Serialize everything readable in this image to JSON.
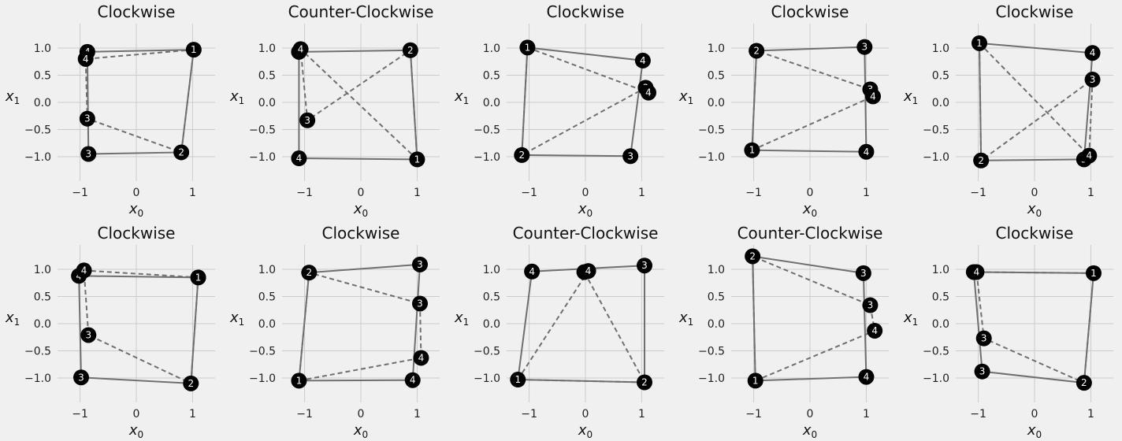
{
  "chart_data": [
    {
      "type": "scatter",
      "title": "Clockwise",
      "xlabel": "x",
      "xlabel_sub": "0",
      "ylabel": "x",
      "ylabel_sub": "1",
      "xlim": [
        -1.4,
        1.4
      ],
      "ylim": [
        -1.45,
        1.45
      ],
      "xticks": [
        "−1",
        "0",
        "1"
      ],
      "yticks": [
        "1.0",
        "0.5",
        "0.0",
        "−0.5",
        "−1.0"
      ],
      "grid": true,
      "solid": [
        [
          1.02,
          0.97
        ],
        [
          0.8,
          -0.92
        ],
        [
          -0.85,
          -0.95
        ],
        [
          -0.87,
          0.93
        ]
      ],
      "dashed": [
        [
          1.02,
          0.97
        ],
        [
          -0.9,
          0.8
        ],
        [
          -0.87,
          -0.3
        ],
        [
          0.8,
          -0.92
        ]
      ],
      "points": [
        {
          "x": 1.02,
          "y": 0.97,
          "label": "1"
        },
        {
          "x": 0.8,
          "y": -0.92,
          "label": "2"
        },
        {
          "x": -0.85,
          "y": -0.95,
          "label": "3"
        },
        {
          "x": -0.87,
          "y": 0.93,
          "label": "4"
        },
        {
          "x": -0.9,
          "y": 0.8,
          "label": "4"
        },
        {
          "x": -0.87,
          "y": -0.3,
          "label": "3"
        }
      ]
    },
    {
      "type": "scatter",
      "title": "Counter-Clockwise",
      "xlabel": "x",
      "xlabel_sub": "0",
      "ylabel": "x",
      "ylabel_sub": "1",
      "xlim": [
        -1.4,
        1.4
      ],
      "ylim": [
        -1.45,
        1.45
      ],
      "xticks": [
        "−1",
        "0",
        "1"
      ],
      "yticks": [
        "1.0",
        "0.5",
        "0.0",
        "−0.5",
        "−1.0"
      ],
      "grid": true,
      "solid": [
        [
          1.0,
          -1.05
        ],
        [
          0.88,
          0.96
        ],
        [
          -1.1,
          0.93
        ],
        [
          -1.1,
          -1.03
        ]
      ],
      "dashed": [
        [
          1.0,
          -1.05
        ],
        [
          -1.07,
          0.98
        ],
        [
          -0.95,
          -0.33
        ],
        [
          0.88,
          0.96
        ]
      ],
      "points": [
        {
          "x": 1.0,
          "y": -1.05,
          "label": "1"
        },
        {
          "x": 0.88,
          "y": 0.96,
          "label": "2"
        },
        {
          "x": -1.1,
          "y": 0.93,
          "label": "3"
        },
        {
          "x": -1.1,
          "y": -1.03,
          "label": "4"
        },
        {
          "x": -1.07,
          "y": 0.98,
          "label": "4"
        },
        {
          "x": -0.95,
          "y": -0.33,
          "label": "3"
        }
      ]
    },
    {
      "type": "scatter",
      "title": "Clockwise",
      "xlabel": "x",
      "xlabel_sub": "0",
      "ylabel": "x",
      "ylabel_sub": "1",
      "xlim": [
        -1.4,
        1.4
      ],
      "ylim": [
        -1.45,
        1.45
      ],
      "xticks": [
        "−1",
        "0",
        "1"
      ],
      "yticks": [
        "1.0",
        "0.5",
        "0.0",
        "−0.5",
        "−1.0"
      ],
      "grid": true,
      "solid": [
        [
          -1.03,
          1.01
        ],
        [
          1.02,
          0.77
        ],
        [
          0.8,
          -0.99
        ],
        [
          -1.13,
          -0.97
        ]
      ],
      "dashed": [
        [
          -1.03,
          1.01
        ],
        [
          1.12,
          0.18
        ],
        [
          1.07,
          0.27
        ],
        [
          -1.13,
          -0.97
        ]
      ],
      "points": [
        {
          "x": -1.03,
          "y": 1.01,
          "label": "1"
        },
        {
          "x": -1.13,
          "y": -0.97,
          "label": "2"
        },
        {
          "x": 0.8,
          "y": -0.99,
          "label": "3"
        },
        {
          "x": 1.02,
          "y": 0.77,
          "label": "4"
        },
        {
          "x": 1.07,
          "y": 0.27,
          "label": "3"
        },
        {
          "x": 1.12,
          "y": 0.18,
          "label": "4"
        }
      ]
    },
    {
      "type": "scatter",
      "title": "Clockwise",
      "xlabel": "x",
      "xlabel_sub": "0",
      "ylabel": "x",
      "ylabel_sub": "1",
      "xlim": [
        -1.4,
        1.4
      ],
      "ylim": [
        -1.45,
        1.45
      ],
      "xticks": [
        "−1",
        "0",
        "1"
      ],
      "yticks": [
        "1.0",
        "0.5",
        "0.0",
        "−0.5",
        "−1.0"
      ],
      "grid": true,
      "solid": [
        [
          -1.03,
          -0.88
        ],
        [
          -0.95,
          0.95
        ],
        [
          0.97,
          1.02
        ],
        [
          1.0,
          -0.91
        ]
      ],
      "dashed": [
        [
          -1.03,
          -0.88
        ],
        [
          1.12,
          0.11
        ],
        [
          1.07,
          0.24
        ],
        [
          -0.95,
          0.95
        ]
      ],
      "points": [
        {
          "x": -1.03,
          "y": -0.88,
          "label": "1"
        },
        {
          "x": -0.95,
          "y": 0.95,
          "label": "2"
        },
        {
          "x": 0.97,
          "y": 1.02,
          "label": "3"
        },
        {
          "x": 1.0,
          "y": -0.91,
          "label": "4"
        },
        {
          "x": 1.07,
          "y": 0.24,
          "label": "3"
        },
        {
          "x": 1.12,
          "y": 0.11,
          "label": "4"
        }
      ]
    },
    {
      "type": "scatter",
      "title": "Clockwise",
      "xlabel": "x",
      "xlabel_sub": "0",
      "ylabel": "x",
      "ylabel_sub": "1",
      "xlim": [
        -1.4,
        1.4
      ],
      "ylim": [
        -1.45,
        1.45
      ],
      "xticks": [
        "−1",
        "0",
        "1"
      ],
      "yticks": [
        "1.0",
        "0.5",
        "0.0",
        "−0.5",
        "−1.0"
      ],
      "grid": true,
      "solid": [
        [
          -0.98,
          1.09
        ],
        [
          1.03,
          0.91
        ],
        [
          0.88,
          -1.05
        ],
        [
          -0.95,
          -1.07
        ]
      ],
      "dashed": [
        [
          -0.98,
          1.09
        ],
        [
          0.97,
          -0.98
        ],
        [
          1.03,
          0.42
        ],
        [
          -0.95,
          -1.07
        ]
      ],
      "points": [
        {
          "x": -0.98,
          "y": 1.09,
          "label": "1"
        },
        {
          "x": -0.95,
          "y": -1.07,
          "label": "2"
        },
        {
          "x": 0.88,
          "y": -1.05,
          "label": "3"
        },
        {
          "x": 1.03,
          "y": 0.91,
          "label": "4"
        },
        {
          "x": 1.03,
          "y": 0.42,
          "label": "3"
        },
        {
          "x": 0.97,
          "y": -0.98,
          "label": "4"
        }
      ]
    },
    {
      "type": "scatter",
      "title": "Clockwise",
      "xlabel": "x",
      "xlabel_sub": "0",
      "ylabel": "x",
      "ylabel_sub": "1",
      "xlim": [
        -1.4,
        1.4
      ],
      "ylim": [
        -1.45,
        1.45
      ],
      "xticks": [
        "−1",
        "0",
        "1"
      ],
      "yticks": [
        "1.0",
        "0.5",
        "0.0",
        "−0.5",
        "−1.0"
      ],
      "grid": true,
      "solid": [
        [
          1.1,
          0.85
        ],
        [
          0.97,
          -1.1
        ],
        [
          -0.98,
          -0.99
        ],
        [
          -1.02,
          0.88
        ]
      ],
      "dashed": [
        [
          1.1,
          0.85
        ],
        [
          -0.93,
          0.98
        ],
        [
          -0.85,
          -0.21
        ],
        [
          0.97,
          -1.1
        ]
      ],
      "points": [
        {
          "x": 1.1,
          "y": 0.85,
          "label": "1"
        },
        {
          "x": 0.97,
          "y": -1.1,
          "label": "2"
        },
        {
          "x": -0.98,
          "y": -0.99,
          "label": "3"
        },
        {
          "x": -1.02,
          "y": 0.88,
          "label": "4"
        },
        {
          "x": -0.93,
          "y": 0.98,
          "label": "4"
        },
        {
          "x": -0.85,
          "y": -0.21,
          "label": "3"
        }
      ]
    },
    {
      "type": "scatter",
      "title": "Clockwise",
      "xlabel": "x",
      "xlabel_sub": "0",
      "ylabel": "x",
      "ylabel_sub": "1",
      "xlim": [
        -1.4,
        1.4
      ],
      "ylim": [
        -1.45,
        1.45
      ],
      "xticks": [
        "−1",
        "0",
        "1"
      ],
      "yticks": [
        "1.0",
        "0.5",
        "0.0",
        "−0.5",
        "−1.0"
      ],
      "grid": true,
      "solid": [
        [
          -1.1,
          -1.05
        ],
        [
          -0.92,
          0.94
        ],
        [
          1.05,
          1.09
        ],
        [
          0.92,
          -1.04
        ]
      ],
      "dashed": [
        [
          -1.1,
          -1.05
        ],
        [
          1.07,
          -0.63
        ],
        [
          1.05,
          0.37
        ],
        [
          -0.92,
          0.94
        ]
      ],
      "points": [
        {
          "x": -1.1,
          "y": -1.05,
          "label": "1"
        },
        {
          "x": -0.92,
          "y": 0.94,
          "label": "2"
        },
        {
          "x": 1.05,
          "y": 1.09,
          "label": "3"
        },
        {
          "x": 0.92,
          "y": -1.04,
          "label": "4"
        },
        {
          "x": 1.05,
          "y": 0.37,
          "label": "3"
        },
        {
          "x": 1.07,
          "y": -0.63,
          "label": "4"
        }
      ]
    },
    {
      "type": "scatter",
      "title": "Counter-Clockwise",
      "xlabel": "x",
      "xlabel_sub": "0",
      "ylabel": "x",
      "ylabel_sub": "1",
      "xlim": [
        -1.4,
        1.4
      ],
      "ylim": [
        -1.45,
        1.45
      ],
      "xticks": [
        "−1",
        "0",
        "1"
      ],
      "yticks": [
        "1.0",
        "0.5",
        "0.0",
        "−0.5",
        "−1.0"
      ],
      "grid": true,
      "solid": [
        [
          -1.2,
          -1.03
        ],
        [
          1.05,
          -1.08
        ],
        [
          1.05,
          1.07
        ],
        [
          -0.95,
          0.96
        ]
      ],
      "dashed": [
        [
          -1.2,
          -1.03
        ],
        [
          0.05,
          0.97
        ],
        [
          -0.02,
          0.95
        ],
        [
          1.05,
          -1.08
        ]
      ],
      "points": [
        {
          "x": -1.2,
          "y": -1.03,
          "label": "1"
        },
        {
          "x": 1.05,
          "y": -1.08,
          "label": "2"
        },
        {
          "x": 1.05,
          "y": 1.07,
          "label": "3"
        },
        {
          "x": -0.95,
          "y": 0.96,
          "label": "4"
        },
        {
          "x": -0.02,
          "y": 0.95,
          "label": "3"
        },
        {
          "x": 0.05,
          "y": 0.97,
          "label": "4"
        }
      ]
    },
    {
      "type": "scatter",
      "title": "Counter-Clockwise",
      "xlabel": "x",
      "xlabel_sub": "0",
      "ylabel": "x",
      "ylabel_sub": "1",
      "xlim": [
        -1.4,
        1.4
      ],
      "ylim": [
        -1.45,
        1.45
      ],
      "xticks": [
        "−1",
        "0",
        "1"
      ],
      "yticks": [
        "1.0",
        "0.5",
        "0.0",
        "−0.5",
        "−1.0"
      ],
      "grid": true,
      "solid": [
        [
          -0.97,
          -1.05
        ],
        [
          1.0,
          -0.98
        ],
        [
          0.95,
          0.93
        ],
        [
          -1.02,
          1.24
        ]
      ],
      "dashed": [
        [
          -0.97,
          -1.05
        ],
        [
          1.15,
          -0.13
        ],
        [
          1.07,
          0.34
        ],
        [
          -1.02,
          1.24
        ]
      ],
      "points": [
        {
          "x": -0.97,
          "y": -1.05,
          "label": "1"
        },
        {
          "x": -1.02,
          "y": 1.24,
          "label": "2"
        },
        {
          "x": 0.95,
          "y": 0.93,
          "label": "3"
        },
        {
          "x": 1.0,
          "y": -0.98,
          "label": "4"
        },
        {
          "x": 1.07,
          "y": 0.34,
          "label": "3"
        },
        {
          "x": 1.15,
          "y": -0.13,
          "label": "4"
        }
      ]
    },
    {
      "type": "scatter",
      "title": "Clockwise",
      "xlabel": "x",
      "xlabel_sub": "0",
      "ylabel": "x",
      "ylabel_sub": "1",
      "xlim": [
        -1.4,
        1.4
      ],
      "ylim": [
        -1.45,
        1.45
      ],
      "xticks": [
        "−1",
        "0",
        "1"
      ],
      "yticks": [
        "1.0",
        "0.5",
        "0.0",
        "−0.5",
        "−1.0"
      ],
      "grid": true,
      "solid": [
        [
          1.05,
          0.93
        ],
        [
          0.88,
          -1.09
        ],
        [
          -0.93,
          -0.88
        ],
        [
          -1.08,
          0.95
        ]
      ],
      "dashed": [
        [
          1.05,
          0.93
        ],
        [
          -1.03,
          0.95
        ],
        [
          -0.9,
          -0.27
        ],
        [
          0.88,
          -1.09
        ]
      ],
      "points": [
        {
          "x": 1.05,
          "y": 0.93,
          "label": "1"
        },
        {
          "x": 0.88,
          "y": -1.09,
          "label": "2"
        },
        {
          "x": -0.93,
          "y": -0.88,
          "label": "3"
        },
        {
          "x": -1.08,
          "y": 0.95,
          "label": "4"
        },
        {
          "x": -1.03,
          "y": 0.95,
          "label": "4"
        },
        {
          "x": -0.9,
          "y": -0.27,
          "label": "3"
        }
      ]
    }
  ]
}
